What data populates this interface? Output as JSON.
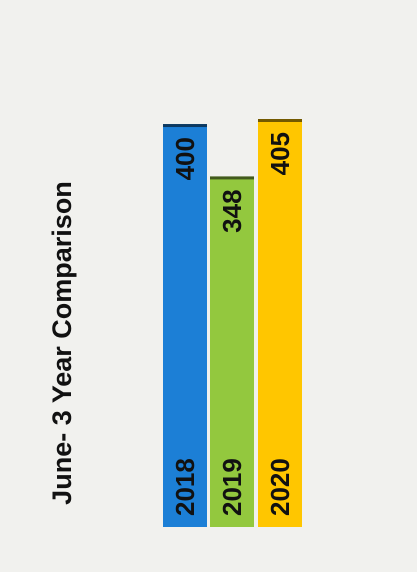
{
  "chart_data": {
    "type": "bar",
    "orientation": "rotated",
    "title": "June- 3 Year Comparison",
    "categories": [
      "2018",
      "2019",
      "2020"
    ],
    "values": [
      400,
      348,
      405
    ],
    "colors": [
      "#1c7fd6",
      "#93c83e",
      "#ffc600"
    ],
    "ylim": [
      0,
      405
    ],
    "grid": false,
    "legend": "none",
    "show_value_labels": true
  }
}
